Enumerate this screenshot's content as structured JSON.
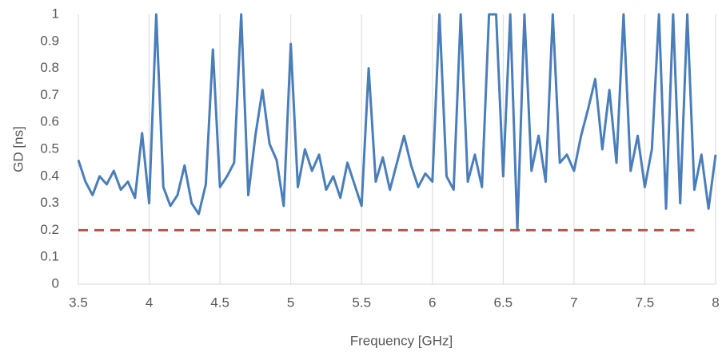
{
  "chart_data": {
    "type": "line",
    "xlabel": "Frequency [GHz]",
    "ylabel": "GD [ns]",
    "xlim": [
      3.5,
      8
    ],
    "ylim": [
      0,
      1
    ],
    "xticks": [
      3.5,
      4,
      4.5,
      5,
      5.5,
      6,
      6.5,
      7,
      7.5,
      8
    ],
    "yticks": [
      0,
      0.1,
      0.2,
      0.3,
      0.4,
      0.5,
      0.6,
      0.7,
      0.8,
      0.9,
      1
    ],
    "grid": "x",
    "series": [
      {
        "color": "#4a7ebb",
        "dash": false,
        "x": [
          3.5,
          3.55,
          3.6,
          3.65,
          3.7,
          3.75,
          3.8,
          3.85,
          3.9,
          3.95,
          4,
          4.05,
          4.1,
          4.15,
          4.2,
          4.25,
          4.3,
          4.35,
          4.4,
          4.45,
          4.5,
          4.55,
          4.6,
          4.65,
          4.7,
          4.75,
          4.8,
          4.85,
          4.9,
          4.95,
          5,
          5.05,
          5.1,
          5.15,
          5.2,
          5.25,
          5.3,
          5.35,
          5.4,
          5.45,
          5.5,
          5.55,
          5.6,
          5.65,
          5.7,
          5.75,
          5.8,
          5.85,
          5.9,
          5.95,
          6,
          6.05,
          6.1,
          6.15,
          6.2,
          6.25,
          6.3,
          6.35,
          6.4,
          6.45,
          6.5,
          6.55,
          6.6,
          6.65,
          6.7,
          6.75,
          6.8,
          6.85,
          6.9,
          6.95,
          7,
          7.05,
          7.1,
          7.15,
          7.2,
          7.25,
          7.3,
          7.35,
          7.4,
          7.45,
          7.5,
          7.55,
          7.6,
          7.65,
          7.7,
          7.75,
          7.8,
          7.85,
          7.9,
          7.95,
          8
        ],
        "values": [
          0.46,
          0.38,
          0.33,
          0.4,
          0.37,
          0.42,
          0.35,
          0.38,
          0.32,
          0.56,
          0.3,
          1,
          0.36,
          0.29,
          0.33,
          0.44,
          0.3,
          0.26,
          0.37,
          0.87,
          0.36,
          0.4,
          0.45,
          1,
          0.33,
          0.55,
          0.72,
          0.52,
          0.46,
          0.29,
          0.89,
          0.36,
          0.5,
          0.42,
          0.48,
          0.35,
          0.4,
          0.32,
          0.45,
          0.37,
          0.29,
          0.8,
          0.38,
          0.47,
          0.35,
          0.45,
          0.55,
          0.44,
          0.36,
          0.41,
          0.38,
          1,
          0.4,
          0.35,
          1,
          0.38,
          0.48,
          0.36,
          1,
          1,
          0.4,
          1,
          0.2,
          1,
          0.42,
          0.55,
          0.38,
          1,
          0.45,
          0.48,
          0.42,
          0.55,
          0.65,
          0.76,
          0.5,
          0.72,
          0.45,
          1,
          0.42,
          0.55,
          0.36,
          0.5,
          1,
          0.28,
          1,
          0.3,
          1,
          0.35,
          0.48,
          0.28,
          0.48
        ]
      },
      {
        "color": "#c0504d",
        "dash": true,
        "x": [
          3.5,
          7.85
        ],
        "values": [
          0.2,
          0.2
        ]
      }
    ]
  }
}
